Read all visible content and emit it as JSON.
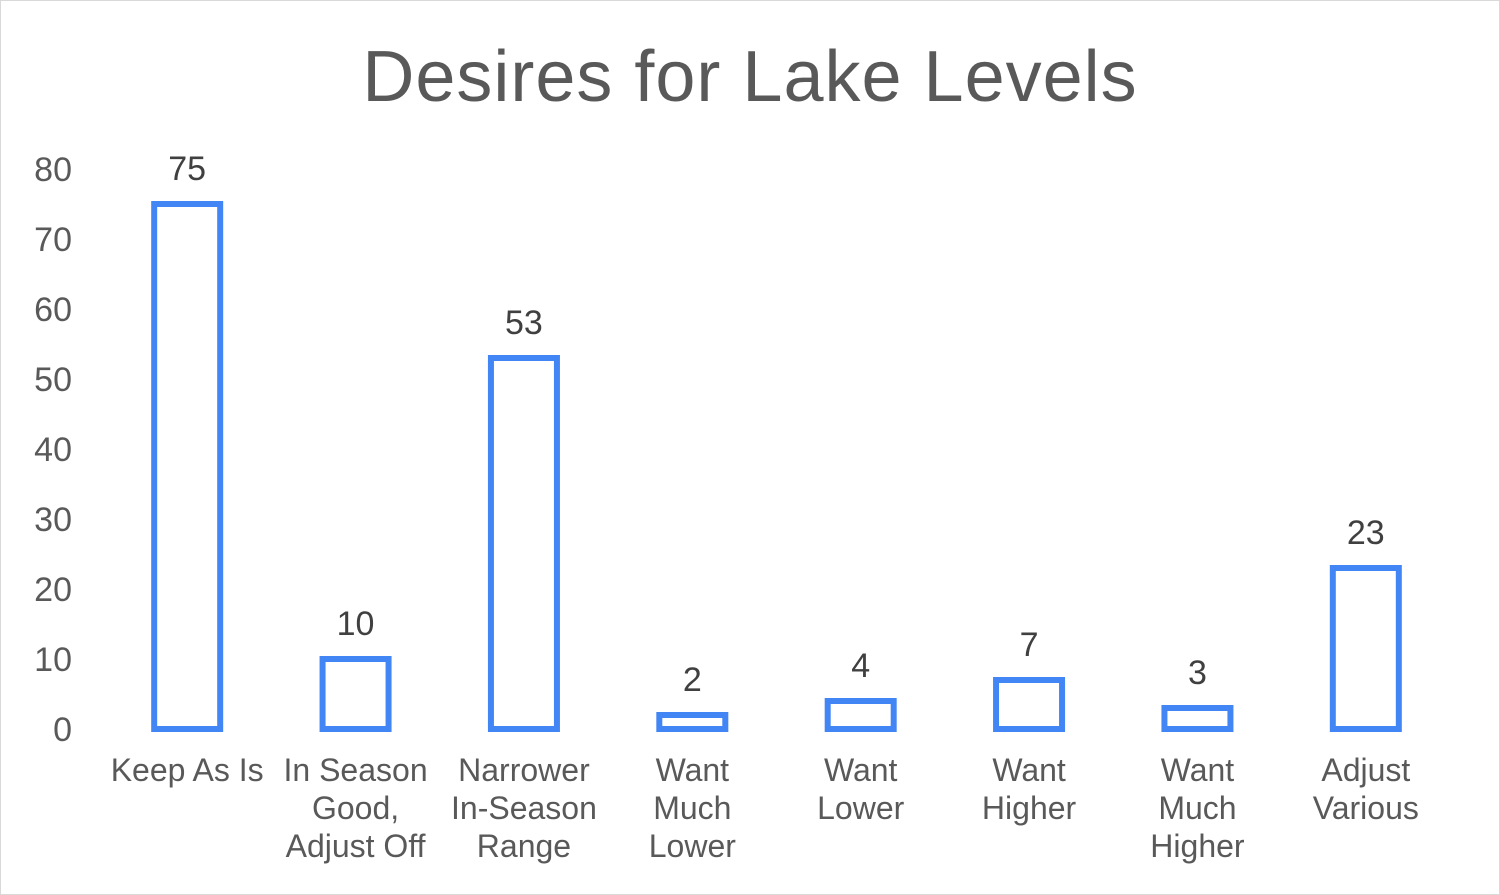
{
  "chart_data": {
    "type": "bar",
    "title": "Desires for Lake Levels",
    "categories": [
      [
        "Keep As Is"
      ],
      [
        "In Season",
        "Good,",
        "Adjust Off"
      ],
      [
        "Narrower",
        "In-Season",
        "Range"
      ],
      [
        "Want",
        "Much",
        "Lower"
      ],
      [
        "Want",
        "Lower"
      ],
      [
        "Want",
        "Higher"
      ],
      [
        "Want",
        "Much",
        "Higher"
      ],
      [
        "Adjust",
        "Various"
      ]
    ],
    "values": [
      75,
      10,
      53,
      2,
      4,
      7,
      3,
      23
    ],
    "ylim": [
      0,
      80
    ],
    "yticks": [
      0,
      10,
      20,
      30,
      40,
      50,
      60,
      70,
      80
    ],
    "xlabel": "",
    "ylabel": "",
    "grid": false,
    "legend": "none",
    "bar_style": "outline",
    "bar_color": "#4285f4"
  }
}
